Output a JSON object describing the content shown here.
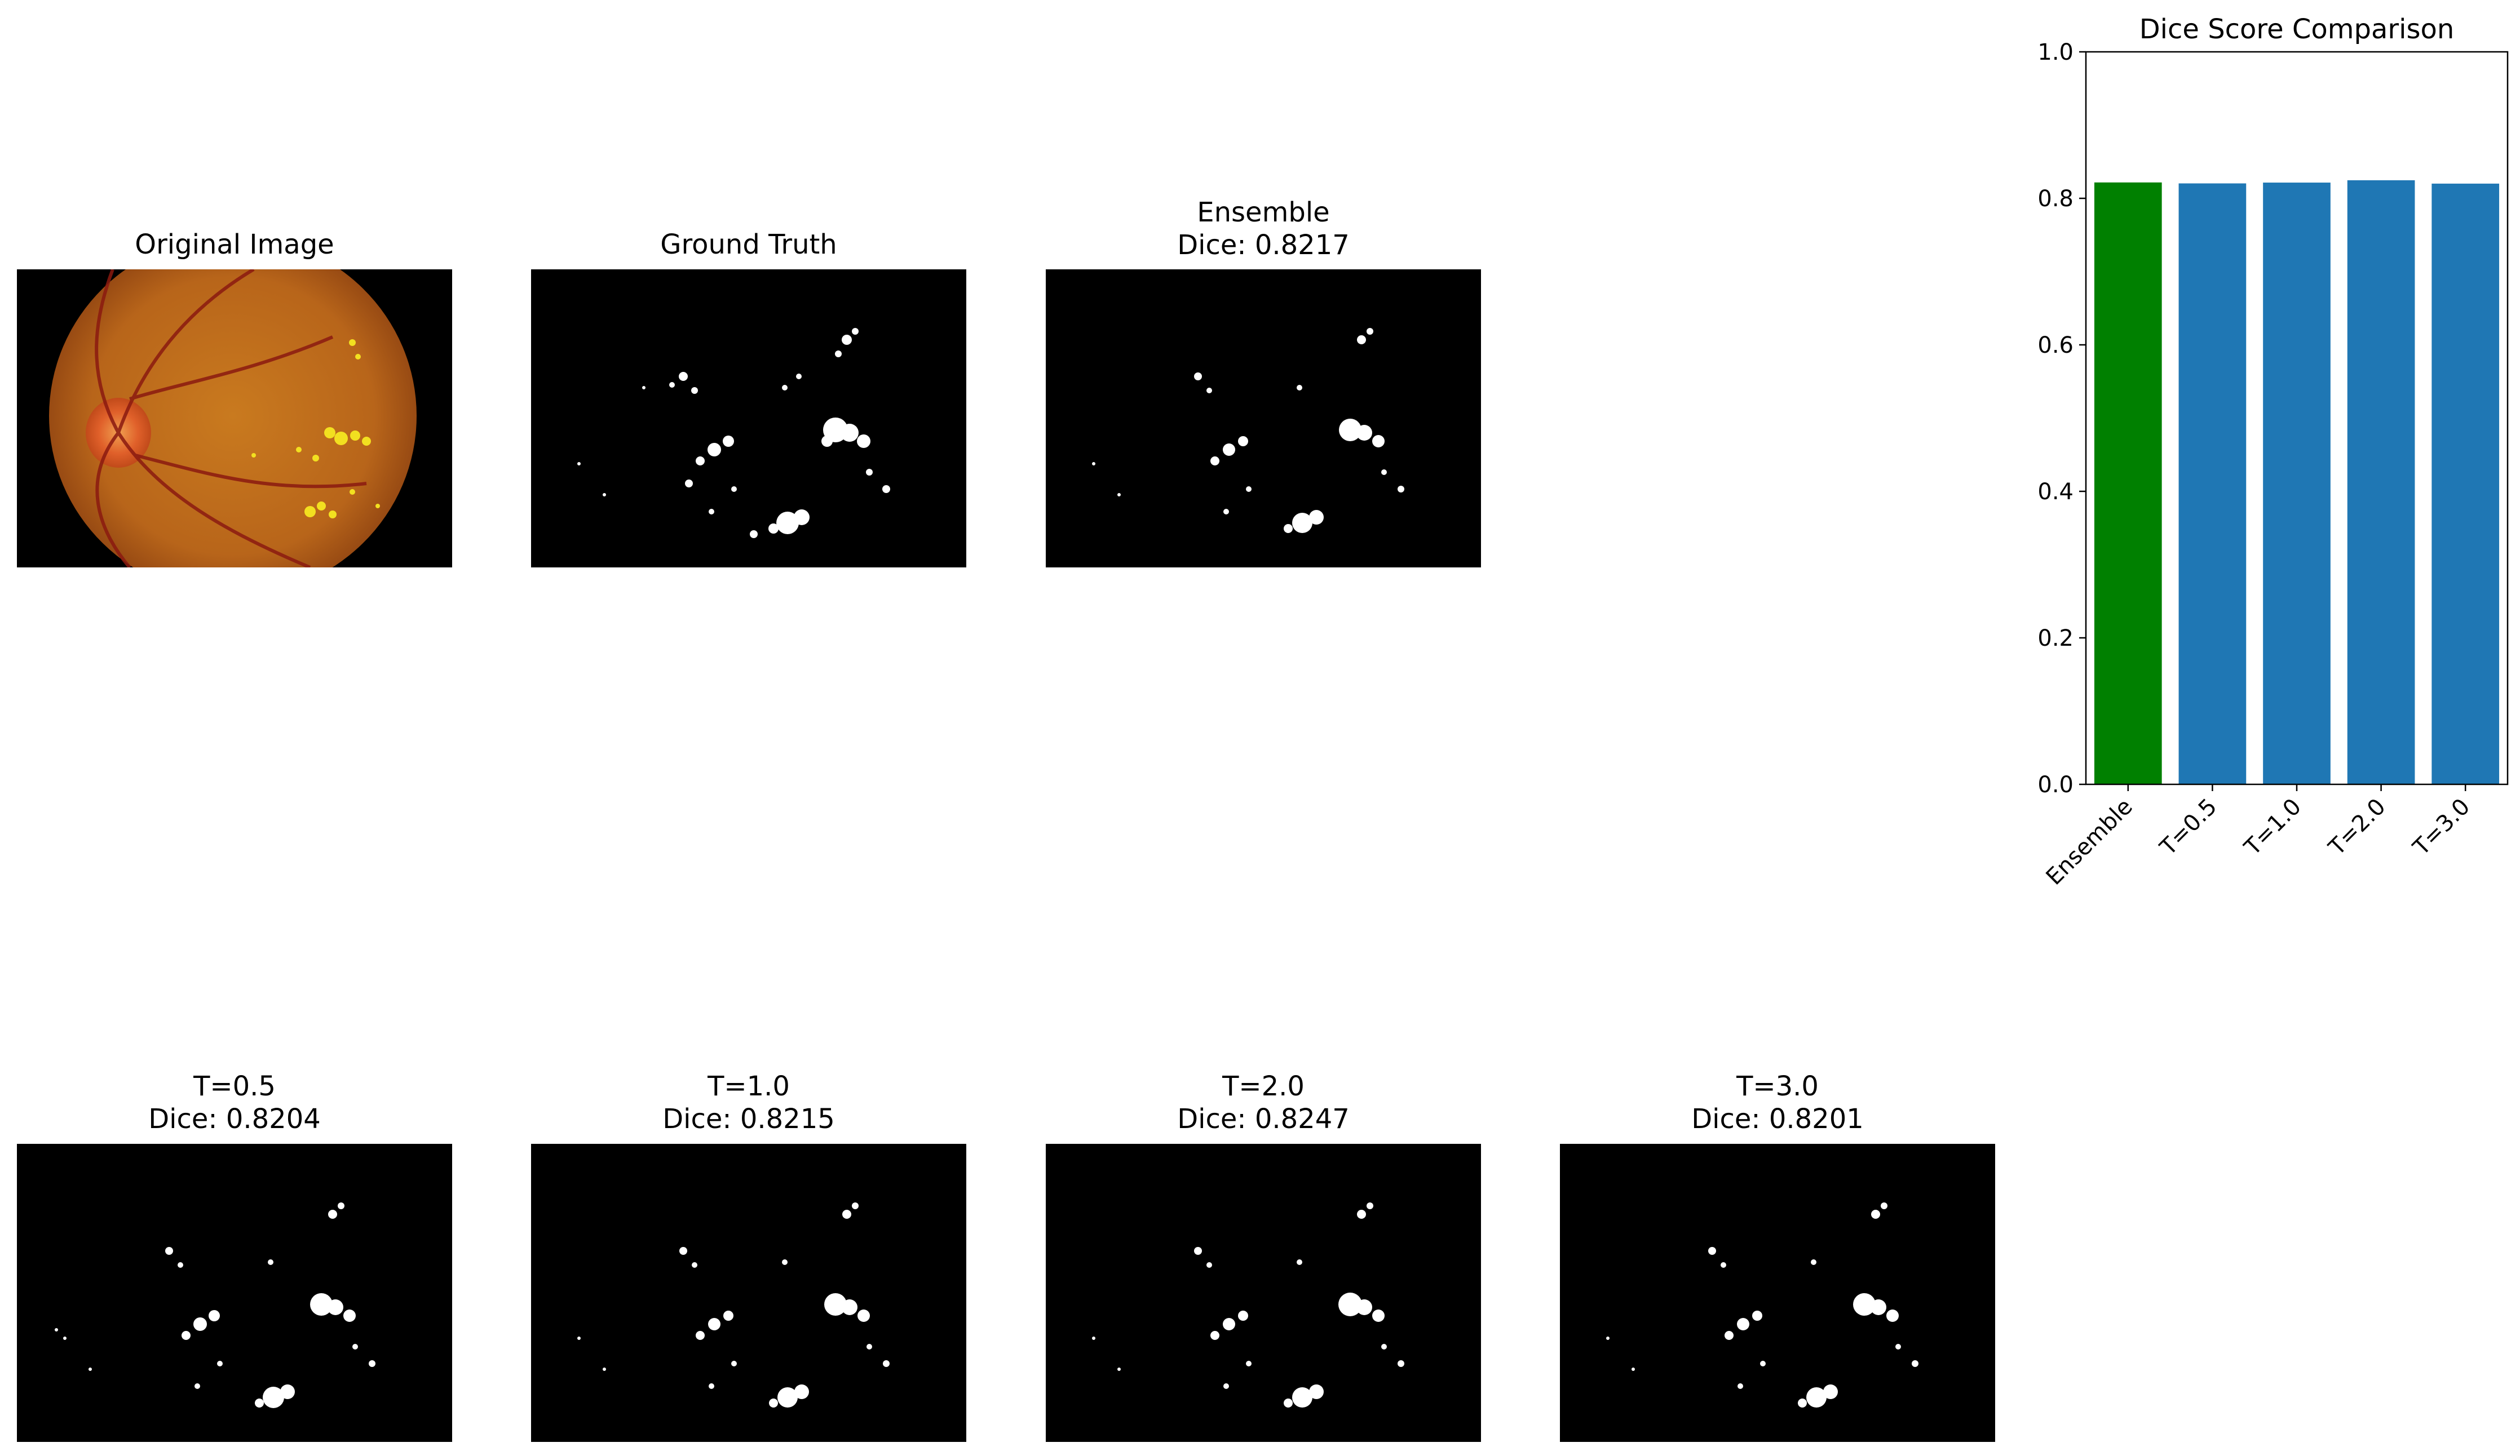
{
  "panels": {
    "original": {
      "title": "Original Image"
    },
    "ground_truth": {
      "title": "Ground Truth"
    },
    "ensemble": {
      "title": "Ensemble\nDice: 0.8217"
    },
    "t05": {
      "title": "T=0.5\nDice: 0.8204"
    },
    "t10": {
      "title": "T=1.0\nDice: 0.8215"
    },
    "t20": {
      "title": "T=2.0\nDice: 0.8247"
    },
    "t30": {
      "title": "T=3.0\nDice: 0.8201"
    }
  },
  "chart_data": {
    "type": "bar",
    "title": "Dice Score Comparison",
    "xlabel": "",
    "ylabel": "",
    "categories": [
      "Ensemble",
      "T=0.5",
      "T=1.0",
      "T=2.0",
      "T=3.0"
    ],
    "values": [
      0.8217,
      0.8204,
      0.8215,
      0.8247,
      0.8201
    ],
    "colors": [
      "#008000",
      "#1f77b4",
      "#1f77b4",
      "#1f77b4",
      "#1f77b4"
    ],
    "ylim": [
      0,
      1.0
    ],
    "yticks": [
      "0.0",
      "0.2",
      "0.4",
      "0.6",
      "0.8",
      "1.0"
    ],
    "grid": false
  }
}
